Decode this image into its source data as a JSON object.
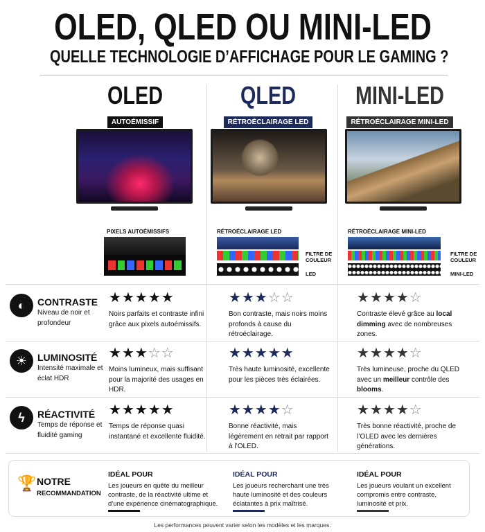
{
  "header": {
    "title": "OLED, QLED OU MINI-LED",
    "subtitle": "QUELLE TECHNOLOGIE D’AFFICHAGE POUR LE GAMING ?"
  },
  "rating_scale": 5,
  "columns": [
    {
      "name": "OLED",
      "tag": "AUTOÉMISSIF",
      "color": "#111111",
      "diagram_title": "PIXELS AUTOÉMISSIFS",
      "side_labels": []
    },
    {
      "name": "QLED",
      "tag": "RÉTROÉCLAIRAGE LED",
      "color": "#1d2b5c",
      "diagram_title": "RÉTROÉCLAIRAGE LED",
      "side_labels": [
        "FILTRE DE COULEUR",
        "LED"
      ]
    },
    {
      "name": "MINI-LED",
      "tag": "RÉTROÉCLAIRAGE MINI-LED",
      "color": "#333333",
      "diagram_title": "RÉTROÉCLAIRAGE MINI-LED",
      "side_labels": [
        "FILTRE DE COULEUR",
        "MINI-LED"
      ]
    }
  ],
  "criteria": [
    {
      "title": "CONTRASTE",
      "desc": "Niveau de noir et profondeur",
      "ratings": [
        5,
        3,
        4
      ],
      "notes": [
        [
          "Noirs parfaits et contraste infini grâce aux pixels autoémissifs."
        ],
        [
          "Bon contraste, mais noirs moins profonds à cause du rétroéclairage."
        ],
        [
          "Contraste élevé grâce au ",
          "local dimming",
          " avec de nombreuses zones."
        ]
      ]
    },
    {
      "title": "LUMINOSITÉ",
      "desc": "Intensité maximale et éclat HDR",
      "ratings": [
        3,
        5,
        4
      ],
      "notes": [
        [
          "Moins lumineux, mais suffisant pour la majorité des usages en HDR."
        ],
        [
          "Très haute luminosité, excellente pour les pièces très éclairées."
        ],
        [
          "Très lumineuse, proche du QLED avec un ",
          "meilleur",
          " contrôle des ",
          "blooms",
          "."
        ]
      ]
    },
    {
      "title": "RÉACTIVITÉ",
      "desc": "Temps de réponse et fluidité gaming",
      "ratings": [
        5,
        4,
        4
      ],
      "notes": [
        [
          "Temps de réponse quasi instantané et excellente fluidité."
        ],
        [
          "Bonne réactivité, mais légèrement en retrait par rapport à l’OLED."
        ],
        [
          "Très bonne réactivité, proche de l’OLED avec les dernières générations."
        ]
      ]
    }
  ],
  "recommendation": {
    "title": [
      "NOTRE",
      "RECOMMANDATION"
    ],
    "items": [
      {
        "label": "IDÉAL POUR",
        "text": "Les joueurs en quête du meilleur contraste, de la réactivité ultime et d’une expérience cinématographique."
      },
      {
        "label": "IDÉAL POUR",
        "text": "Les joueurs recherchant une très haute luminosité et des couleurs éclatantes à prix maîtrisé."
      },
      {
        "label": "IDÉAL POUR",
        "text": "Les joueurs voulant un excellent compromis entre contraste, luminosité et prix."
      }
    ]
  },
  "footer": "Les performances peuvent varier selon les modèles et les marques."
}
